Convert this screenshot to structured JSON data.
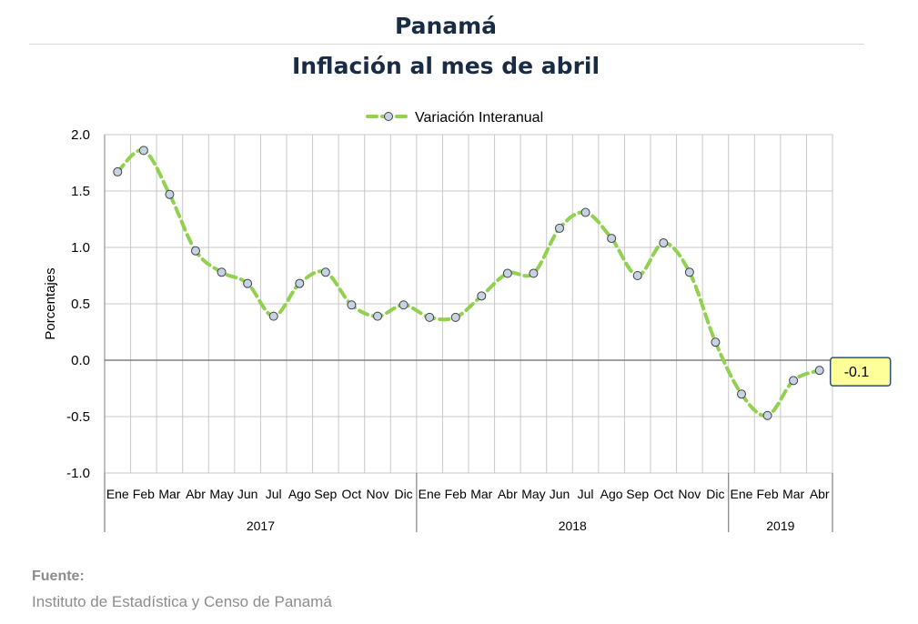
{
  "title": "Panamá",
  "subtitle": "Inflación al mes de abril",
  "source": {
    "label": "Fuente:",
    "text": "Instituto de Estadística y Censo de Panamá"
  },
  "colors": {
    "line": "#92d050",
    "marker_fill": "#c5d3e4",
    "marker_stroke": "#404040",
    "callout_fill": "#ffff99",
    "callout_stroke": "#2f4f7f",
    "grid": "#c8c8c8",
    "axis": "#808080"
  },
  "chart_data": {
    "type": "line",
    "ylabel": "Porcentajes",
    "ylim": [
      -1.0,
      2.0
    ],
    "yticks": [
      "2.0",
      "1.5",
      "1.0",
      "0.5",
      "0.0",
      "-0.5",
      "-1.0"
    ],
    "ytick_values": [
      2.0,
      1.5,
      1.0,
      0.5,
      0.0,
      -0.5,
      -1.0
    ],
    "legend_position": "top-center",
    "grid": true,
    "categories": [
      "Ene",
      "Feb",
      "Mar",
      "Abr",
      "May",
      "Jun",
      "Jul",
      "Ago",
      "Sep",
      "Oct",
      "Nov",
      "Dic",
      "Ene",
      "Feb",
      "Mar",
      "Abr",
      "May",
      "Jun",
      "Jul",
      "Ago",
      "Sep",
      "Oct",
      "Nov",
      "Dic",
      "Ene",
      "Feb",
      "Mar",
      "Abr"
    ],
    "years": [
      {
        "label": "2017",
        "count": 12
      },
      {
        "label": "2018",
        "count": 12
      },
      {
        "label": "2019",
        "count": 4
      }
    ],
    "series": [
      {
        "name": "Variación Interanual",
        "values": [
          1.67,
          1.86,
          1.47,
          0.97,
          0.78,
          0.68,
          0.39,
          0.68,
          0.78,
          0.49,
          0.39,
          0.49,
          0.38,
          0.38,
          0.57,
          0.77,
          0.77,
          1.17,
          1.31,
          1.08,
          0.75,
          1.04,
          0.78,
          0.16,
          -0.3,
          -0.49,
          -0.18,
          -0.09
        ]
      }
    ],
    "annotation": {
      "text": "-0.1",
      "index": 27
    }
  }
}
